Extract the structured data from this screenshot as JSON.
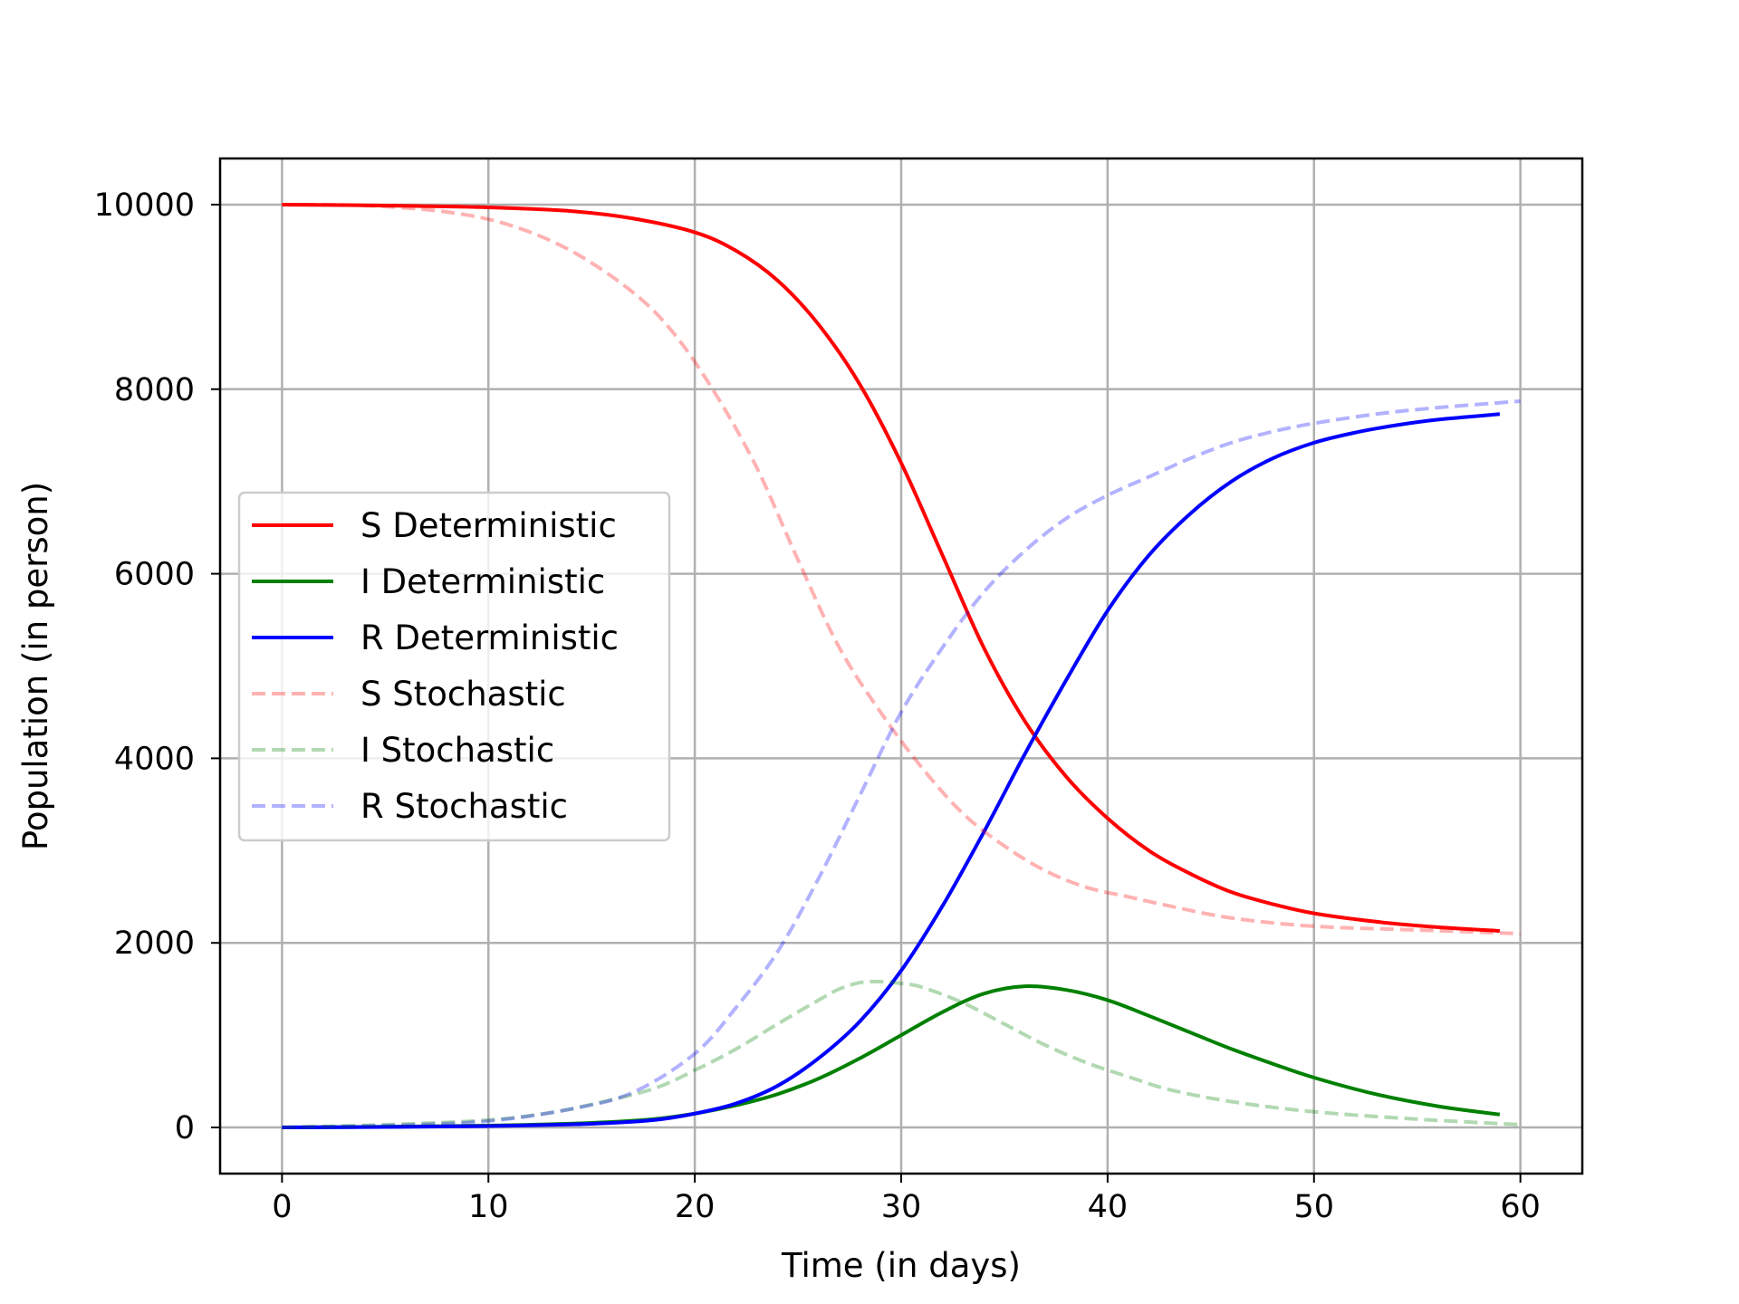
{
  "chart_data": {
    "type": "line",
    "title": "",
    "xlabel": "Time (in days)",
    "ylabel": "Population (in person)",
    "xlim": [
      -3,
      63
    ],
    "ylim": [
      -500,
      10500
    ],
    "xticks": [
      0,
      10,
      20,
      30,
      40,
      50,
      60
    ],
    "yticks": [
      0,
      2000,
      4000,
      6000,
      8000,
      10000
    ],
    "grid": true,
    "legend_position": "center-left",
    "series": [
      {
        "name": "S Deterministic",
        "color": "#ff0000",
        "style": "solid",
        "opacity": 1,
        "x": [
          0,
          5,
          10,
          14,
          17,
          20,
          22,
          24,
          26,
          28,
          30,
          32,
          34,
          36,
          38,
          40,
          42,
          44,
          46,
          48,
          50,
          53,
          56,
          59
        ],
        "y": [
          10000,
          9990,
          9970,
          9930,
          9850,
          9700,
          9500,
          9180,
          8700,
          8050,
          7200,
          6200,
          5200,
          4400,
          3800,
          3350,
          3000,
          2750,
          2550,
          2420,
          2320,
          2230,
          2170,
          2130
        ]
      },
      {
        "name": "I Deterministic",
        "color": "#008000",
        "style": "solid",
        "opacity": 1,
        "x": [
          0,
          5,
          10,
          15,
          18,
          20,
          22,
          24,
          26,
          28,
          30,
          32,
          34,
          36,
          38,
          40,
          42,
          44,
          46,
          48,
          50,
          53,
          56,
          59
        ],
        "y": [
          0,
          8,
          20,
          50,
          90,
          150,
          240,
          360,
          530,
          750,
          1000,
          1250,
          1450,
          1530,
          1490,
          1380,
          1210,
          1030,
          850,
          690,
          540,
          360,
          230,
          140
        ]
      },
      {
        "name": "R Deterministic",
        "color": "#0000ff",
        "style": "solid",
        "opacity": 1,
        "x": [
          0,
          5,
          10,
          15,
          18,
          20,
          22,
          24,
          26,
          28,
          30,
          32,
          34,
          36,
          38,
          40,
          42,
          44,
          46,
          48,
          50,
          52,
          54,
          56,
          59
        ],
        "y": [
          0,
          5,
          15,
          40,
          80,
          150,
          260,
          450,
          750,
          1150,
          1700,
          2400,
          3200,
          4050,
          4850,
          5600,
          6200,
          6650,
          7000,
          7250,
          7420,
          7530,
          7610,
          7670,
          7730
        ]
      },
      {
        "name": "S Stochastic",
        "color": "#ff0000",
        "style": "dashed",
        "opacity": 0.3,
        "x": [
          0,
          4,
          8,
          11,
          14,
          17,
          19,
          21,
          23,
          25,
          27,
          29,
          31,
          33,
          35,
          37,
          39,
          41,
          43,
          46,
          50,
          55,
          60
        ],
        "y": [
          10000,
          9990,
          9920,
          9780,
          9500,
          9050,
          8600,
          7950,
          7150,
          6150,
          5200,
          4500,
          3900,
          3400,
          3050,
          2780,
          2600,
          2500,
          2400,
          2270,
          2180,
          2140,
          2100
        ]
      },
      {
        "name": "I Stochastic",
        "color": "#008000",
        "style": "dashed",
        "opacity": 0.3,
        "x": [
          0,
          5,
          10,
          13,
          15,
          18,
          20,
          22,
          24,
          26,
          27,
          28,
          29,
          30,
          31,
          33,
          35,
          37,
          39,
          41,
          43,
          46,
          50,
          55,
          60
        ],
        "y": [
          0,
          30,
          80,
          160,
          250,
          420,
          620,
          850,
          1120,
          1380,
          1500,
          1570,
          1580,
          1560,
          1520,
          1350,
          1120,
          890,
          700,
          550,
          410,
          280,
          170,
          90,
          30
        ]
      },
      {
        "name": "R Stochastic",
        "color": "#0000ff",
        "style": "dashed",
        "opacity": 0.3,
        "x": [
          0,
          5,
          10,
          14,
          17,
          20,
          22,
          24,
          26,
          28,
          30,
          32,
          34,
          36,
          38,
          40,
          42,
          44,
          46,
          48,
          50,
          53,
          56,
          60
        ],
        "y": [
          0,
          20,
          70,
          200,
          380,
          800,
          1300,
          1900,
          2700,
          3600,
          4500,
          5200,
          5800,
          6250,
          6600,
          6850,
          7050,
          7250,
          7420,
          7540,
          7630,
          7730,
          7800,
          7870
        ]
      }
    ]
  }
}
